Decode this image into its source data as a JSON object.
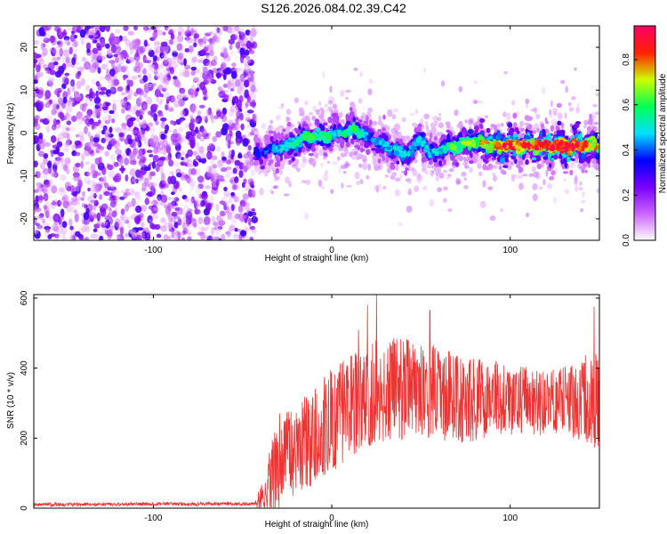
{
  "title": "S126.2026.084.02.39.C42",
  "colors": {
    "snr_line": "#ee3333",
    "colormap": [
      "#ffffff",
      "#cc66ff",
      "#7a00ff",
      "#0000ff",
      "#00e0ff",
      "#00ff55",
      "#ccff00",
      "#ff2200",
      "#ff0066"
    ]
  },
  "chart_data": [
    {
      "type": "heatmap",
      "title": "",
      "xlabel": "Height of straight line (km)",
      "ylabel": "Frequency (Hz)",
      "xlim": [
        -167,
        150
      ],
      "ylim": [
        -25,
        25
      ],
      "x_ticks": [
        -100,
        0,
        100
      ],
      "x_tick_labels": [
        "-100",
        "0",
        "100"
      ],
      "y_ticks": [
        -20,
        -10,
        0,
        10,
        20
      ],
      "y_tick_labels": [
        "-20",
        "-10",
        "0",
        "10",
        "20"
      ],
      "grid": false,
      "noise_region_x": [
        -167,
        -43
      ],
      "noise_amplitude_range": [
        0.05,
        0.3
      ],
      "signal_ridge": {
        "x": [
          -43,
          -35,
          -25,
          -15,
          -5,
          5,
          12,
          20,
          25,
          30,
          40,
          45,
          50,
          55,
          60,
          70,
          80,
          90,
          100,
          110,
          120,
          130,
          140,
          150
        ],
        "freq_hz": [
          -5,
          -4,
          -3,
          -1,
          -1,
          0,
          1,
          -1,
          -2,
          -3,
          -5,
          -4,
          -1,
          -5,
          -4,
          -3,
          -2,
          -3,
          -3,
          -3,
          -3,
          -3,
          -3,
          -3
        ],
        "peak_amplitude": [
          0.35,
          0.4,
          0.5,
          0.55,
          0.55,
          0.5,
          0.55,
          0.45,
          0.4,
          0.45,
          0.5,
          0.45,
          0.45,
          0.45,
          0.5,
          0.6,
          0.65,
          0.75,
          0.85,
          0.8,
          0.85,
          0.9,
          0.85,
          0.7
        ]
      },
      "colorbar": {
        "label": "Normalized spectral amplitude",
        "range": [
          0,
          0.95
        ],
        "ticks": [
          0.0,
          0.2,
          0.4,
          0.6,
          0.8
        ],
        "tick_labels": [
          "0.0",
          "0.2",
          "0.4",
          "0.6",
          "0.8"
        ]
      }
    },
    {
      "type": "line",
      "title": "",
      "xlabel": "Height of straight line (km)",
      "ylabel": "SNR (10 * v/v)",
      "xlim": [
        -167,
        150
      ],
      "ylim": [
        0,
        610
      ],
      "x_ticks": [
        -100,
        0,
        100
      ],
      "x_tick_labels": [
        "-100",
        "0",
        "100"
      ],
      "y_ticks": [
        0,
        200,
        400,
        600
      ],
      "y_tick_labels": [
        "0",
        "200",
        "400",
        "600"
      ],
      "grid": false,
      "series": [
        {
          "x": [
            -167,
            -100,
            -43,
            -38,
            -30,
            -25,
            -20,
            -10,
            0,
            10,
            20,
            30,
            40,
            50,
            60,
            70,
            80,
            90,
            100,
            110,
            120,
            130,
            140,
            150
          ],
          "mean": [
            10,
            12,
            12,
            35,
            120,
            150,
            160,
            190,
            240,
            280,
            310,
            330,
            330,
            325,
            320,
            300,
            300,
            310,
            300,
            300,
            290,
            300,
            300,
            310
          ],
          "spread": [
            5,
            5,
            5,
            60,
            130,
            130,
            120,
            130,
            140,
            140,
            140,
            140,
            135,
            130,
            125,
            120,
            110,
            100,
            90,
            90,
            90,
            90,
            110,
            150
          ],
          "peaks": [
            {
              "x": 25,
              "y": 610
            },
            {
              "x": 20,
              "y": 580
            },
            {
              "x": 55,
              "y": 565
            },
            {
              "x": 147,
              "y": 575
            },
            {
              "x": 15,
              "y": 510
            }
          ]
        }
      ]
    }
  ]
}
